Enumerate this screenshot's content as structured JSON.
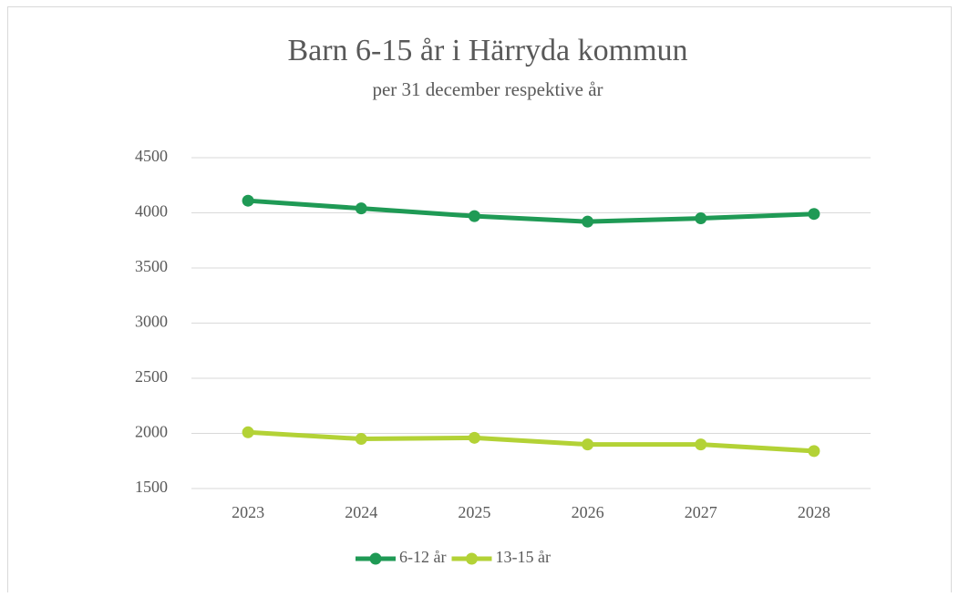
{
  "chart_data": {
    "type": "line",
    "title": "Barn 6-15 år i Härryda kommun",
    "subtitle": "per 31 december respektive år",
    "categories": [
      "2023",
      "2024",
      "2025",
      "2026",
      "2027",
      "2028"
    ],
    "series": [
      {
        "name": "6-12 år",
        "color": "#1f9a55",
        "values": [
          4110,
          4040,
          3970,
          3920,
          3950,
          3990
        ]
      },
      {
        "name": "13-15 år",
        "color": "#b3d236",
        "values": [
          2010,
          1950,
          1960,
          1900,
          1900,
          1840
        ]
      }
    ],
    "ylim": [
      1500,
      4500
    ],
    "yticks": [
      1500,
      2000,
      2500,
      3000,
      3500,
      4000,
      4500
    ],
    "grid": true,
    "legend": "bottom"
  }
}
